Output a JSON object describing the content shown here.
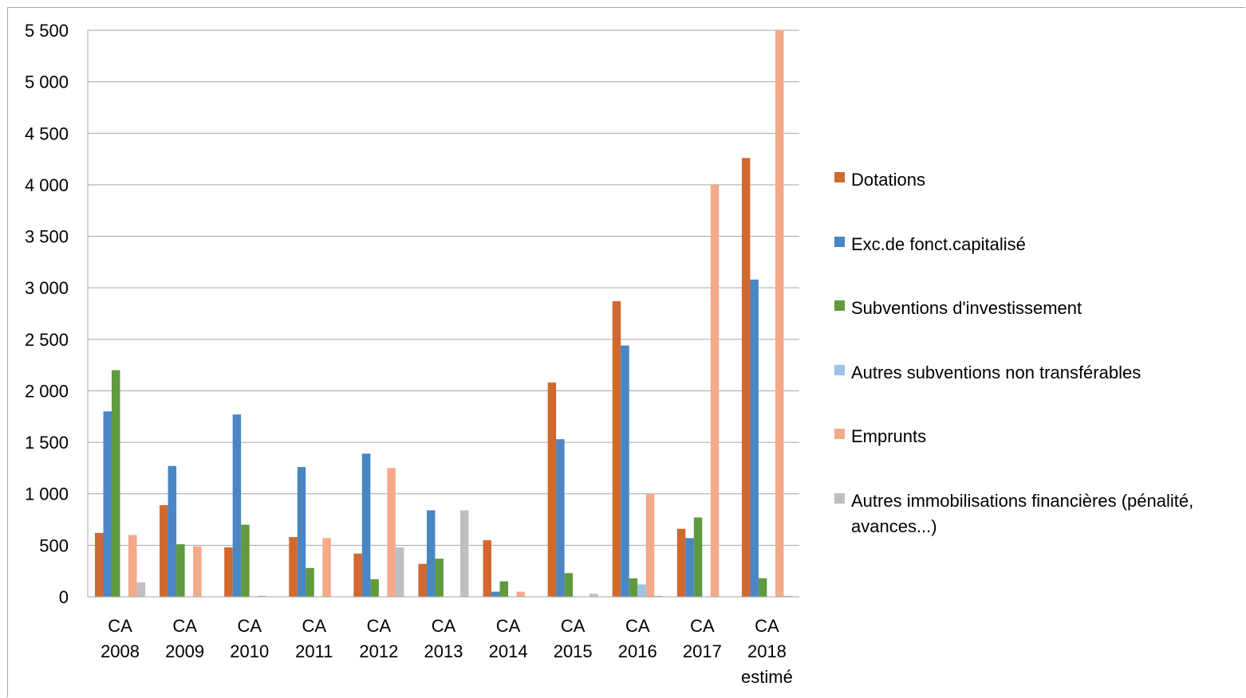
{
  "chart_data": {
    "type": "bar",
    "categories": [
      [
        "CA",
        "2008"
      ],
      [
        "CA",
        "2009"
      ],
      [
        "CA",
        "2010"
      ],
      [
        "CA",
        "2011"
      ],
      [
        "CA",
        "2012"
      ],
      [
        "CA",
        "2013"
      ],
      [
        "CA",
        "2014"
      ],
      [
        "CA",
        "2015"
      ],
      [
        "CA",
        "2016"
      ],
      [
        "CA",
        "2017"
      ],
      [
        "CA",
        "2018",
        "estimé"
      ]
    ],
    "ylim": [
      0,
      5500
    ],
    "yticks": [
      0,
      500,
      1000,
      1500,
      2000,
      2500,
      3000,
      3500,
      4000,
      4500,
      5000,
      5500
    ],
    "ytick_labels": [
      "0",
      "500",
      "1 000",
      "1 500",
      "2 000",
      "2 500",
      "3 000",
      "3 500",
      "4 000",
      "4 500",
      "5 000",
      "5 500"
    ],
    "grid": true,
    "legend_position": "right",
    "series": [
      {
        "name": "Dotations",
        "color": "#d0692f",
        "values": [
          620,
          890,
          480,
          580,
          420,
          320,
          550,
          2080,
          2870,
          660,
          4260
        ]
      },
      {
        "name": "Exc.de fonct.capitalisé",
        "color": "#4a86c3",
        "values": [
          1800,
          1270,
          1770,
          1260,
          1390,
          840,
          50,
          1530,
          2440,
          570,
          3080
        ]
      },
      {
        "name": "Subventions d'investissement",
        "color": "#5f9a3e",
        "values": [
          2200,
          510,
          700,
          280,
          170,
          370,
          150,
          230,
          180,
          770,
          180
        ]
      },
      {
        "name": "Autres subventions non transférables",
        "color": "#9dc3e6",
        "values": [
          0,
          0,
          0,
          0,
          0,
          0,
          0,
          0,
          120,
          0,
          0
        ]
      },
      {
        "name": "Emprunts",
        "color": "#f4a98a",
        "values": [
          600,
          490,
          10,
          570,
          1250,
          0,
          50,
          0,
          1000,
          4000,
          5500
        ]
      },
      {
        "name": "Autres immobilisations financières (pénalité, avances...)",
        "color": "#bfbfbf",
        "values": [
          140,
          0,
          0,
          0,
          480,
          840,
          0,
          30,
          10,
          0,
          10
        ]
      }
    ]
  }
}
